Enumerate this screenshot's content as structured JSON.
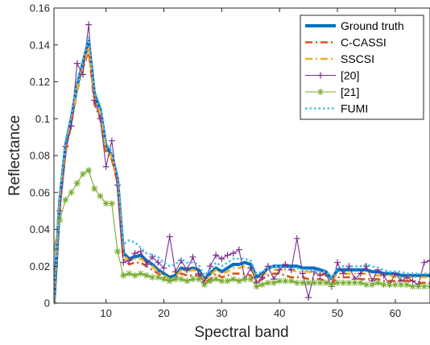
{
  "chart_data": {
    "type": "line",
    "xlabel": "Spectral band",
    "ylabel": "Reflectance",
    "xlim": [
      1,
      66
    ],
    "ylim": [
      0,
      0.16
    ],
    "xticks": [
      10,
      20,
      30,
      40,
      50,
      60
    ],
    "xtick_labels": [
      "10",
      "20",
      "30",
      "40",
      "50",
      "60"
    ],
    "yticks": [
      0,
      0.02,
      0.04,
      0.06,
      0.08,
      0.1,
      0.12,
      0.14,
      0.16
    ],
    "ytick_labels": [
      "0",
      "0.02",
      "0.04",
      "0.06",
      "0.08",
      "0.1",
      "0.12",
      "0.14",
      "0.16"
    ],
    "grid": false,
    "legend_position": "top-right",
    "series": [
      {
        "name": "Ground truth",
        "color": "#0072BD",
        "style": "solid-thick",
        "x": [
          1,
          2,
          3,
          4,
          5,
          6,
          7,
          8,
          9,
          10,
          11,
          12,
          13,
          14,
          15,
          16,
          17,
          18,
          19,
          20,
          21,
          22,
          23,
          24,
          25,
          26,
          27,
          28,
          29,
          30,
          31,
          32,
          33,
          34,
          35,
          36,
          37,
          38,
          39,
          40,
          41,
          42,
          43,
          44,
          45,
          46,
          47,
          48,
          49,
          50,
          51,
          52,
          53,
          54,
          55,
          56,
          57,
          58,
          59,
          60,
          61,
          62,
          63,
          64,
          65,
          66
        ],
        "y": [
          0,
          0.055,
          0.085,
          0.1,
          0.118,
          0.13,
          0.142,
          0.113,
          0.105,
          0.085,
          0.08,
          0.067,
          0.027,
          0.024,
          0.025,
          0.026,
          0.023,
          0.021,
          0.018,
          0.016,
          0.014,
          0.015,
          0.019,
          0.018,
          0.019,
          0.018,
          0.013,
          0.016,
          0.019,
          0.017,
          0.019,
          0.021,
          0.021,
          0.022,
          0.021,
          0.014,
          0.016,
          0.019,
          0.02,
          0.02,
          0.02,
          0.02,
          0.02,
          0.019,
          0.019,
          0.019,
          0.018,
          0.017,
          0.013,
          0.018,
          0.018,
          0.018,
          0.018,
          0.018,
          0.018,
          0.017,
          0.017,
          0.016,
          0.016,
          0.016,
          0.015,
          0.015,
          0.015,
          0.015,
          0.015,
          0.015
        ]
      },
      {
        "name": "C-CASSI",
        "color": "#D95319",
        "style": "dashdot",
        "x": [
          1,
          2,
          3,
          4,
          5,
          6,
          7,
          8,
          9,
          10,
          11,
          12,
          13,
          14,
          15,
          16,
          17,
          18,
          19,
          20,
          21,
          22,
          23,
          24,
          25,
          26,
          27,
          28,
          29,
          30,
          31,
          32,
          33,
          34,
          35,
          36,
          37,
          38,
          39,
          40,
          41,
          42,
          43,
          44,
          45,
          46,
          47,
          48,
          49,
          50,
          51,
          52,
          53,
          54,
          55,
          56,
          57,
          58,
          59,
          60,
          61,
          62,
          63,
          64,
          65,
          66
        ],
        "y": [
          0,
          0.052,
          0.082,
          0.097,
          0.115,
          0.127,
          0.137,
          0.108,
          0.1,
          0.082,
          0.078,
          0.065,
          0.024,
          0.021,
          0.022,
          0.022,
          0.02,
          0.018,
          0.016,
          0.014,
          0.012,
          0.013,
          0.016,
          0.015,
          0.015,
          0.015,
          0.011,
          0.013,
          0.016,
          0.014,
          0.015,
          0.016,
          0.016,
          0.016,
          0.015,
          0.011,
          0.013,
          0.015,
          0.016,
          0.016,
          0.015,
          0.014,
          0.014,
          0.014,
          0.013,
          0.013,
          0.013,
          0.012,
          0.01,
          0.014,
          0.014,
          0.014,
          0.014,
          0.013,
          0.013,
          0.013,
          0.013,
          0.012,
          0.012,
          0.012,
          0.012,
          0.012,
          0.012,
          0.011,
          0.011,
          0.011
        ]
      },
      {
        "name": "SSCSI",
        "color": "#EDB120",
        "style": "dashdot",
        "x": [
          1,
          2,
          3,
          4,
          5,
          6,
          7,
          8,
          9,
          10,
          11,
          12,
          13,
          14,
          15,
          16,
          17,
          18,
          19,
          20,
          21,
          22,
          23,
          24,
          25,
          26,
          27,
          28,
          29,
          30,
          31,
          32,
          33,
          34,
          35,
          36,
          37,
          38,
          39,
          40,
          41,
          42,
          43,
          44,
          45,
          46,
          47,
          48,
          49,
          50,
          51,
          52,
          53,
          54,
          55,
          56,
          57,
          58,
          59,
          60,
          61,
          62,
          63,
          64,
          65,
          66
        ],
        "y": [
          0,
          0.054,
          0.084,
          0.099,
          0.116,
          0.128,
          0.139,
          0.111,
          0.103,
          0.084,
          0.079,
          0.066,
          0.026,
          0.023,
          0.024,
          0.024,
          0.022,
          0.02,
          0.017,
          0.015,
          0.013,
          0.014,
          0.018,
          0.017,
          0.018,
          0.017,
          0.012,
          0.015,
          0.018,
          0.016,
          0.017,
          0.019,
          0.019,
          0.02,
          0.019,
          0.013,
          0.015,
          0.017,
          0.018,
          0.018,
          0.018,
          0.018,
          0.017,
          0.017,
          0.017,
          0.016,
          0.016,
          0.015,
          0.012,
          0.016,
          0.016,
          0.016,
          0.016,
          0.016,
          0.016,
          0.015,
          0.015,
          0.015,
          0.015,
          0.014,
          0.014,
          0.014,
          0.014,
          0.014,
          0.014,
          0.014
        ]
      },
      {
        "name": "[20]",
        "color": "#7E2F8E",
        "style": "plus-markers",
        "x": [
          1,
          2,
          3,
          4,
          5,
          6,
          7,
          8,
          9,
          10,
          11,
          12,
          13,
          14,
          15,
          16,
          17,
          18,
          19,
          20,
          21,
          22,
          23,
          24,
          25,
          26,
          27,
          28,
          29,
          30,
          31,
          32,
          33,
          34,
          35,
          36,
          37,
          38,
          39,
          40,
          41,
          42,
          43,
          44,
          45,
          46,
          47,
          48,
          49,
          50,
          51,
          52,
          53,
          54,
          55,
          56,
          57,
          58,
          59,
          60,
          61,
          62,
          63,
          64,
          65,
          66
        ],
        "y": [
          0,
          0.05,
          0.085,
          0.096,
          0.13,
          0.124,
          0.151,
          0.11,
          0.1,
          0.074,
          0.088,
          0.064,
          0.022,
          0.023,
          0.027,
          0.028,
          0.021,
          0.025,
          0.022,
          0.019,
          0.036,
          0.017,
          0.023,
          0.018,
          0.025,
          0.016,
          0.011,
          0.02,
          0.026,
          0.024,
          0.026,
          0.027,
          0.029,
          0.013,
          0.019,
          0.011,
          0.014,
          0.02,
          0.013,
          0.018,
          0.021,
          0.018,
          0.035,
          0.016,
          0.003,
          0.017,
          0.015,
          0.016,
          0.009,
          0.022,
          0.016,
          0.02,
          0.013,
          0.016,
          0.02,
          0.012,
          0.018,
          0.015,
          0.01,
          0.016,
          0.012,
          0.014,
          0.012,
          0.01,
          0.022,
          0.023
        ]
      },
      {
        "name": "[21]",
        "color": "#77AC30",
        "style": "star-markers",
        "x": [
          1,
          2,
          3,
          4,
          5,
          6,
          7,
          8,
          9,
          10,
          11,
          12,
          13,
          14,
          15,
          16,
          17,
          18,
          19,
          20,
          21,
          22,
          23,
          24,
          25,
          26,
          27,
          28,
          29,
          30,
          31,
          32,
          33,
          34,
          35,
          36,
          37,
          38,
          39,
          40,
          41,
          42,
          43,
          44,
          45,
          46,
          47,
          48,
          49,
          50,
          51,
          52,
          53,
          54,
          55,
          56,
          57,
          58,
          59,
          60,
          61,
          62,
          63,
          64,
          65,
          66
        ],
        "y": [
          0.029,
          0.045,
          0.056,
          0.06,
          0.065,
          0.07,
          0.072,
          0.062,
          0.058,
          0.054,
          0.054,
          0.028,
          0.015,
          0.016,
          0.015,
          0.016,
          0.015,
          0.014,
          0.014,
          0.013,
          0.012,
          0.013,
          0.013,
          0.012,
          0.013,
          0.013,
          0.01,
          0.012,
          0.013,
          0.012,
          0.012,
          0.013,
          0.012,
          0.013,
          0.013,
          0.009,
          0.01,
          0.011,
          0.011,
          0.012,
          0.012,
          0.012,
          0.011,
          0.011,
          0.011,
          0.011,
          0.011,
          0.011,
          0.01,
          0.011,
          0.011,
          0.011,
          0.011,
          0.011,
          0.01,
          0.01,
          0.011,
          0.01,
          0.01,
          0.01,
          0.01,
          0.01,
          0.009,
          0.009,
          0.009,
          0.009
        ]
      },
      {
        "name": "FUMI",
        "color": "#4DBEEE",
        "style": "dotted",
        "x": [
          1,
          2,
          3,
          4,
          5,
          6,
          7,
          8,
          9,
          10,
          11,
          12,
          13,
          14,
          15,
          16,
          17,
          18,
          19,
          20,
          21,
          22,
          23,
          24,
          25,
          26,
          27,
          28,
          29,
          30,
          31,
          32,
          33,
          34,
          35,
          36,
          37,
          38,
          39,
          40,
          41,
          42,
          43,
          44,
          45,
          46,
          47,
          48,
          49,
          50,
          51,
          52,
          53,
          54,
          55,
          56,
          57,
          58,
          59,
          60,
          61,
          62,
          63,
          64,
          65,
          66
        ],
        "y": [
          0.001,
          0.058,
          0.088,
          0.102,
          0.12,
          0.132,
          0.144,
          0.115,
          0.107,
          0.087,
          0.082,
          0.069,
          0.032,
          0.034,
          0.033,
          0.03,
          0.027,
          0.026,
          0.025,
          0.022,
          0.02,
          0.021,
          0.024,
          0.022,
          0.022,
          0.021,
          0.015,
          0.018,
          0.022,
          0.02,
          0.022,
          0.024,
          0.024,
          0.024,
          0.023,
          0.016,
          0.017,
          0.019,
          0.02,
          0.02,
          0.019,
          0.019,
          0.019,
          0.018,
          0.018,
          0.017,
          0.017,
          0.017,
          0.014,
          0.019,
          0.02,
          0.02,
          0.02,
          0.02,
          0.021,
          0.02,
          0.019,
          0.018,
          0.017,
          0.017,
          0.017,
          0.016,
          0.016,
          0.016,
          0.016,
          0.016
        ]
      }
    ]
  }
}
